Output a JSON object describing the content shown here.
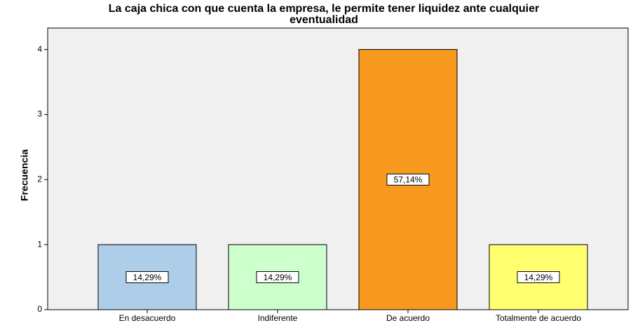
{
  "chart_data": {
    "type": "bar",
    "title": [
      "La caja chica con que cuenta la empresa, le permite tener liquidez ante cualquier",
      "eventualidad"
    ],
    "y_label": "Frecuencia",
    "categories": [
      "En desacuerdo",
      "Indiferente",
      "De acuerdo",
      "Totalmente de acuerdo"
    ],
    "values": [
      1,
      1,
      4,
      1
    ],
    "colors": [
      "#aecde9",
      "#ccffcc",
      "#f7991f",
      "#ffff70"
    ],
    "percent_values": [
      14.29,
      14.29,
      57.14,
      14.29
    ],
    "percent_labels": [
      "14,29%",
      "14,29%",
      "57,14%",
      "14,29%"
    ],
    "ylim": [
      0,
      4.33
    ],
    "yticks": [
      0,
      1,
      2,
      3,
      4
    ],
    "grid": false
  }
}
